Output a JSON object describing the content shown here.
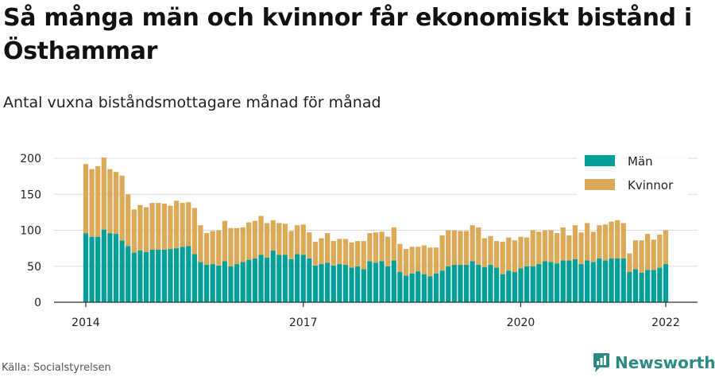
{
  "title": "Så många män och kvinnor får ekonomiskt bistånd i Östhammar",
  "subtitle": "Antal vuxna biståndsmottagare månad för månad",
  "source": "Källa: Socialstyrelsen",
  "brand": {
    "name": "Newsworthy",
    "icon": "bar-chart-badge-icon",
    "color": "#2b8a84"
  },
  "chart_data": {
    "type": "bar",
    "stacked": true,
    "x_start": "2014-01",
    "x_end": "2022-01",
    "x_ticks": [
      {
        "month": "2014-01",
        "label": "2014"
      },
      {
        "month": "2017-01",
        "label": "2017"
      },
      {
        "month": "2020-01",
        "label": "2020"
      },
      {
        "month": "2022-01",
        "label": "2022"
      }
    ],
    "ylim": [
      0,
      210
    ],
    "y_ticks": [
      0,
      50,
      100,
      150,
      200
    ],
    "grid": true,
    "legend_position": "top-right",
    "series": [
      {
        "name": "Män",
        "color": "#00a099",
        "values": [
          96,
          91,
          91,
          101,
          96,
          95,
          86,
          78,
          69,
          72,
          70,
          73,
          73,
          73,
          74,
          75,
          77,
          78,
          67,
          56,
          52,
          53,
          51,
          57,
          50,
          53,
          56,
          59,
          61,
          66,
          62,
          72,
          66,
          66,
          60,
          67,
          66,
          61,
          51,
          53,
          55,
          51,
          53,
          52,
          48,
          50,
          46,
          57,
          55,
          57,
          50,
          58,
          42,
          37,
          40,
          43,
          39,
          36,
          40,
          44,
          50,
          52,
          52,
          52,
          57,
          52,
          49,
          52,
          48,
          39,
          44,
          42,
          47,
          50,
          50,
          53,
          57,
          56,
          54,
          58,
          58,
          60,
          53,
          58,
          56,
          61,
          58,
          61,
          61,
          61,
          42,
          46,
          41,
          45,
          45,
          48,
          53
        ]
      },
      {
        "name": "Kvinnor",
        "color": "#dcaa57",
        "values": [
          96,
          94,
          98,
          100,
          89,
          86,
          90,
          72,
          60,
          63,
          62,
          65,
          65,
          64,
          60,
          66,
          61,
          61,
          64,
          51,
          44,
          46,
          49,
          56,
          53,
          50,
          48,
          52,
          52,
          54,
          48,
          42,
          44,
          43,
          39,
          40,
          42,
          36,
          33,
          36,
          41,
          34,
          35,
          36,
          35,
          35,
          39,
          39,
          42,
          41,
          41,
          46,
          39,
          37,
          37,
          34,
          40,
          40,
          36,
          49,
          50,
          48,
          47,
          47,
          50,
          52,
          40,
          40,
          37,
          45,
          46,
          44,
          44,
          40,
          50,
          45,
          43,
          44,
          42,
          46,
          35,
          47,
          44,
          52,
          42,
          46,
          50,
          51,
          53,
          49,
          26,
          40,
          45,
          50,
          42,
          46,
          47
        ]
      }
    ]
  }
}
